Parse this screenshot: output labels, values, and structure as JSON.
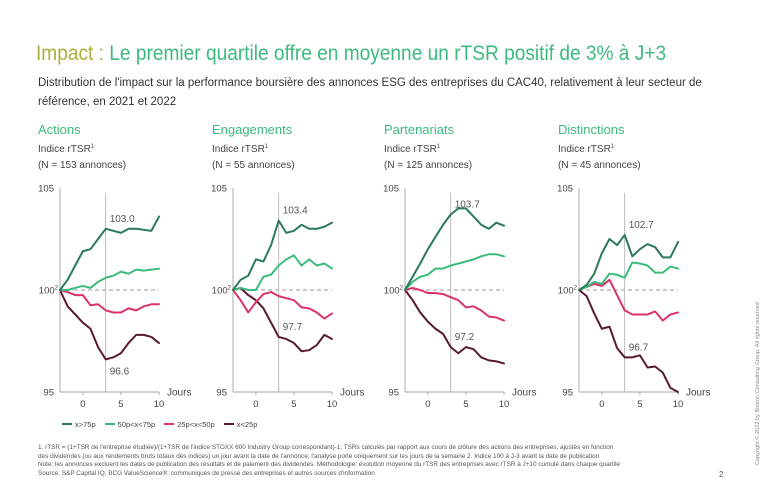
{
  "title": {
    "prefix": "Impact :",
    "main": "Le premier quartile offre en moyenne un rTSR positif de 3% à J+3"
  },
  "subtitle": {
    "lines": [
      "Distribution de l'impact sur la performance boursière des annonces ESG des entreprises du CAC40, relativement à leur secteur de",
      "référence,  en 2021 et 2022"
    ]
  },
  "colors": {
    "title_prefix": "#a7b23b",
    "title_main": "#3dba7e",
    "panel_title": "#3dba7e"
  },
  "series_colors": {
    "x>75p": "#2b7a5a",
    "50p<x<75p": "#3dbb7c",
    "25p<x<50p": "#d93468",
    "x<25p": "#5a1a34"
  },
  "legend": {
    "placement": "bottom-left",
    "items": [
      "x>75p",
      "50p<x<75p",
      "25p<x<50p",
      "x<25p"
    ]
  },
  "chart_data": [
    {
      "type": "line",
      "title": "Actions",
      "ylabel": "Indice rTSR",
      "ylabel_sup": "1",
      "count_label": "(N = 153 annonces)",
      "xlabel": "Jours",
      "x": [
        -3,
        -2,
        -1,
        0,
        1,
        2,
        3,
        4,
        5,
        6,
        7,
        8,
        9,
        10
      ],
      "xlim": [
        -3,
        10
      ],
      "ylim": [
        95,
        105
      ],
      "xticks": [
        0,
        5,
        10
      ],
      "yticks": [
        {
          "value": 105,
          "label": "105",
          "sup": ""
        },
        {
          "value": 100,
          "label": "100",
          "sup": "2"
        },
        {
          "value": 95,
          "label": "95",
          "sup": ""
        }
      ],
      "reference_line": {
        "y": 100,
        "style": "dashed"
      },
      "marker_line": {
        "x": 3
      },
      "series": [
        {
          "name": "x>75p",
          "values": [
            100,
            100.5,
            101.2,
            101.9,
            102.0,
            102.5,
            103.0,
            102.9,
            102.8,
            103.0,
            103.0,
            102.95,
            102.9,
            103.6
          ]
        },
        {
          "name": "50p<x<75p",
          "values": [
            100,
            100.0,
            100.1,
            100.2,
            100.1,
            100.4,
            100.6,
            100.7,
            100.9,
            100.8,
            101.0,
            100.95,
            101.0,
            101.05
          ]
        },
        {
          "name": "25p<x<50p",
          "values": [
            100,
            99.9,
            99.75,
            99.75,
            99.25,
            99.3,
            99.0,
            98.9,
            98.9,
            99.1,
            99.0,
            99.2,
            99.3,
            99.3
          ]
        },
        {
          "name": "x<25p",
          "values": [
            100,
            99.2,
            98.8,
            98.4,
            98.1,
            97.2,
            96.6,
            96.7,
            96.9,
            97.4,
            97.8,
            97.8,
            97.7,
            97.4
          ]
        }
      ],
      "annotations": [
        {
          "series": "x>75p",
          "x": 3,
          "y": 103.0,
          "text": "103.0",
          "position": "above"
        },
        {
          "series": "x<25p",
          "x": 3,
          "y": 96.6,
          "text": "96.6",
          "position": "below"
        }
      ]
    },
    {
      "type": "line",
      "title": "Engagements",
      "ylabel": "Indice rTSR",
      "ylabel_sup": "1",
      "count_label": "(N = 55 annonces)",
      "xlabel": "Jours",
      "x": [
        -3,
        -2,
        -1,
        0,
        1,
        2,
        3,
        4,
        5,
        6,
        7,
        8,
        9,
        10
      ],
      "xlim": [
        -3,
        10
      ],
      "ylim": [
        95,
        105
      ],
      "xticks": [
        0,
        5,
        10
      ],
      "yticks": [
        {
          "value": 105,
          "label": "105",
          "sup": ""
        },
        {
          "value": 100,
          "label": "100",
          "sup": "2"
        },
        {
          "value": 95,
          "label": "95",
          "sup": ""
        }
      ],
      "reference_line": {
        "y": 100,
        "style": "dashed"
      },
      "marker_line": {
        "x": 3
      },
      "series": [
        {
          "name": "x>75p",
          "values": [
            100,
            100.5,
            100.7,
            101.5,
            101.4,
            102.2,
            103.4,
            102.8,
            102.9,
            103.2,
            103.0,
            103.0,
            103.1,
            103.3
          ]
        },
        {
          "name": "50p<x<75p",
          "values": [
            100,
            100.1,
            100.0,
            100.0,
            100.65,
            100.75,
            101.2,
            101.5,
            101.7,
            101.2,
            101.5,
            101.2,
            101.3,
            101.05
          ]
        },
        {
          "name": "25p<x<50p",
          "values": [
            100,
            99.5,
            98.9,
            99.4,
            99.8,
            99.9,
            99.7,
            99.6,
            99.5,
            99.15,
            99.1,
            98.9,
            98.6,
            98.85
          ]
        },
        {
          "name": "x<25p",
          "values": [
            100,
            100.1,
            99.75,
            99.5,
            99.1,
            98.4,
            97.7,
            97.6,
            97.4,
            97.0,
            97.05,
            97.3,
            97.8,
            97.6
          ]
        }
      ],
      "annotations": [
        {
          "series": "x>75p",
          "x": 3,
          "y": 103.4,
          "text": "103.4",
          "position": "above"
        },
        {
          "series": "x<25p",
          "x": 3,
          "y": 97.7,
          "text": "97.7",
          "position": "above"
        }
      ]
    },
    {
      "type": "line",
      "title": "Partenariats",
      "ylabel": "Indice rTSR",
      "ylabel_sup": "1",
      "count_label": "(N = 125 annonces)",
      "xlabel": "Jours",
      "x": [
        -3,
        -2,
        -1,
        0,
        1,
        2,
        3,
        4,
        5,
        6,
        7,
        8,
        9,
        10
      ],
      "xlim": [
        -3,
        10
      ],
      "ylim": [
        95,
        105
      ],
      "xticks": [
        0,
        5,
        10
      ],
      "yticks": [
        {
          "value": 105,
          "label": "105",
          "sup": ""
        },
        {
          "value": 100,
          "label": "100",
          "sup": "2"
        },
        {
          "value": 95,
          "label": "95",
          "sup": ""
        }
      ],
      "reference_line": {
        "y": 100,
        "style": "dashed"
      },
      "marker_line": {
        "x": 3
      },
      "series": [
        {
          "name": "x>75p",
          "values": [
            100,
            100.65,
            101.3,
            102.0,
            102.6,
            103.2,
            103.7,
            104.0,
            104.0,
            103.6,
            103.2,
            103.0,
            103.3,
            103.15
          ]
        },
        {
          "name": "50p<x<75p",
          "values": [
            100,
            100.4,
            100.65,
            100.75,
            101.05,
            101.05,
            101.2,
            101.3,
            101.4,
            101.5,
            101.65,
            101.75,
            101.75,
            101.65
          ]
        },
        {
          "name": "25p<x<50p",
          "values": [
            100,
            100.1,
            100.0,
            99.85,
            99.85,
            99.8,
            99.65,
            99.5,
            99.15,
            99.2,
            99.0,
            98.7,
            98.65,
            98.5
          ]
        },
        {
          "name": "x<25p",
          "values": [
            100,
            99.5,
            98.9,
            98.45,
            98.1,
            97.85,
            97.2,
            96.9,
            97.2,
            97.1,
            96.7,
            96.55,
            96.5,
            96.4
          ]
        }
      ],
      "annotations": [
        {
          "series": "x>75p",
          "x": 3,
          "y": 103.7,
          "text": "103.7",
          "position": "above"
        },
        {
          "series": "x<25p",
          "x": 3,
          "y": 97.2,
          "text": "97.2",
          "position": "above"
        }
      ]
    },
    {
      "type": "line",
      "title": "Distinctions",
      "ylabel": "Indice rTSR",
      "ylabel_sup": "1",
      "count_label": "(N = 45 annonces)",
      "xlabel": "Jours",
      "x": [
        -3,
        -2,
        -1,
        0,
        1,
        2,
        3,
        4,
        5,
        6,
        7,
        8,
        9,
        10
      ],
      "xlim": [
        -3,
        10
      ],
      "ylim": [
        95,
        105
      ],
      "xticks": [
        0,
        5,
        10
      ],
      "yticks": [
        {
          "value": 105,
          "label": "105",
          "sup": ""
        },
        {
          "value": 100,
          "label": "100",
          "sup": "2"
        },
        {
          "value": 95,
          "label": "95",
          "sup": ""
        }
      ],
      "reference_line": {
        "y": 100,
        "style": "dashed"
      },
      "marker_line": {
        "x": 3
      },
      "series": [
        {
          "name": "x>75p",
          "values": [
            100,
            100.25,
            100.8,
            101.8,
            102.5,
            102.2,
            102.7,
            101.65,
            102.0,
            102.25,
            102.1,
            101.6,
            101.6,
            102.35
          ]
        },
        {
          "name": "50p<x<75p",
          "values": [
            100,
            100.15,
            100.4,
            100.3,
            100.8,
            100.75,
            100.6,
            101.35,
            101.3,
            101.2,
            100.85,
            100.85,
            101.15,
            101.05
          ]
        },
        {
          "name": "25p<x<50p",
          "values": [
            100,
            100.15,
            100.3,
            100.2,
            100.5,
            99.75,
            99.0,
            98.8,
            98.8,
            98.8,
            98.95,
            98.5,
            98.8,
            98.9
          ]
        },
        {
          "name": "x<25p",
          "values": [
            100,
            99.7,
            98.85,
            98.1,
            98.2,
            97.15,
            96.7,
            96.7,
            96.8,
            96.2,
            96.25,
            95.95,
            95.2,
            95.0
          ]
        }
      ],
      "annotations": [
        {
          "series": "x>75p",
          "x": 3,
          "y": 102.7,
          "text": "102.7",
          "position": "above"
        },
        {
          "series": "x<25p",
          "x": 3,
          "y": 96.7,
          "text": "96.7",
          "position": "above"
        }
      ]
    }
  ],
  "footnotes": [
    "1. rTSR = (1+TSR de l'entreprise étudiée)/(1+TSR de l'indice STOXX 600 Industry Group correspondant)-1; TSRs calculés par rapport aux cours de clôture des actions des entreprises, ajustés en fonction",
    "des dividendes (ou aux rendements bruts totaux des indices) un jour avant la date de l'annonce; l'analyse porte uniquement sur les jours de la semaine 2. Indice 100 à J-3 avant la date de publication",
    "Note: les annonces excluent les dates de publication des résultats et de paiement des dividendes. Méthodologie: évolution moyenne du rTSR des entreprises avec rTSR à J+10 cumulé dans chaque quartile",
    "Source: S&P Capital IQ; BCG ValueScience®; communiqués de presse des entreprises et autres sources d'information"
  ],
  "page_number": "2",
  "copyright": "Copyright © 2022 by Boston Consulting Group. All rights reserved."
}
